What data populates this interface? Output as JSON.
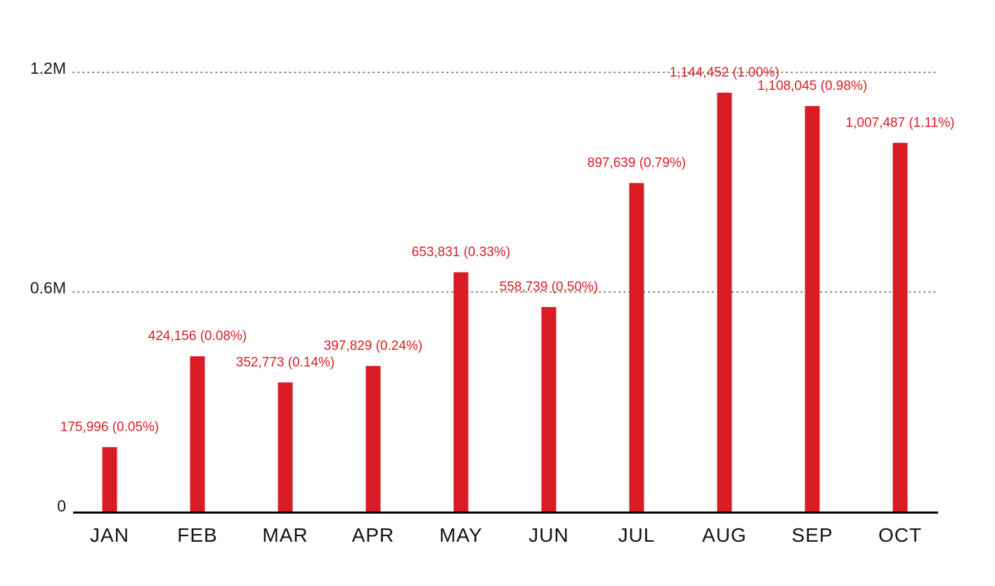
{
  "chart_data": {
    "type": "bar",
    "categories": [
      "JAN",
      "FEB",
      "MAR",
      "APR",
      "MAY",
      "JUN",
      "JUL",
      "AUG",
      "SEP",
      "OCT"
    ],
    "values": [
      175996,
      424156,
      352773,
      397829,
      653831,
      558739,
      897639,
      1144452,
      1108045,
      1007487
    ],
    "percentages": [
      "0.05%",
      "0.08%",
      "0.14%",
      "0.24%",
      "0.33%",
      "0.50%",
      "0.79%",
      "1.00%",
      "0.98%",
      "1.11%"
    ],
    "data_labels": [
      "175,996 (0.05%)",
      "424,156 (0.08%)",
      "352,773 (0.14%)",
      "397,829 (0.24%)",
      "653,831 (0.33%)",
      "558,739 (0.50%)",
      "897,639 (0.79%)",
      "1,144,452 (1.00%)",
      "1,108,045 (0.98%)",
      "1,007,487 (1.11%)"
    ],
    "y_ticks": [
      0,
      600000,
      1200000
    ],
    "y_tick_labels": [
      "0",
      "0.6M",
      "1.2M"
    ],
    "ylim": [
      0,
      1200000
    ],
    "title": "",
    "xlabel": "",
    "ylabel": "",
    "grid": "dotted horizontal at 0.6M and 1.2M",
    "legend": "none",
    "bar_color": "#d91c24",
    "label_color": "#d91c24",
    "axis_color": "#000000"
  }
}
